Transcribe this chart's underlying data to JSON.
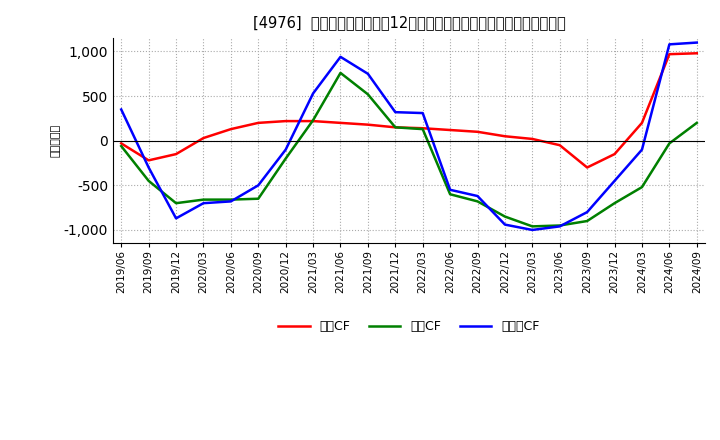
{
  "title": "[4976]  キャッシュフローの12か月移動合計の対前年同期増減額の推移",
  "ylabel": "（百万円）",
  "ylim": [
    -1150,
    1150
  ],
  "yticks": [
    -1000,
    -500,
    0,
    500,
    1000
  ],
  "background_color": "#ffffff",
  "grid_color": "#aaaaaa",
  "dates": [
    "2019/06",
    "2019/09",
    "2019/12",
    "2020/03",
    "2020/06",
    "2020/09",
    "2020/12",
    "2021/03",
    "2021/06",
    "2021/09",
    "2021/12",
    "2022/03",
    "2022/06",
    "2022/09",
    "2022/12",
    "2023/03",
    "2023/06",
    "2023/09",
    "2023/12",
    "2024/03",
    "2024/06",
    "2024/09"
  ],
  "operating_cf": [
    -30,
    -220,
    -150,
    30,
    130,
    200,
    220,
    220,
    200,
    180,
    150,
    140,
    120,
    100,
    50,
    20,
    -50,
    -300,
    -150,
    200,
    970,
    980
  ],
  "investing_cf": [
    -60,
    -450,
    -700,
    -660,
    -660,
    -650,
    -200,
    230,
    760,
    520,
    150,
    130,
    -600,
    -680,
    -850,
    -960,
    -950,
    -900,
    -700,
    -520,
    -30,
    200
  ],
  "free_cf": [
    350,
    -300,
    -870,
    -700,
    -680,
    -500,
    -100,
    530,
    940,
    750,
    320,
    310,
    -550,
    -620,
    -940,
    -1000,
    -960,
    -800,
    -450,
    -100,
    1080,
    1100
  ],
  "operating_color": "#ff0000",
  "investing_color": "#008000",
  "free_color": "#0000ff",
  "legend_labels": [
    "営業CF",
    "投資CF",
    "フリーCF"
  ]
}
